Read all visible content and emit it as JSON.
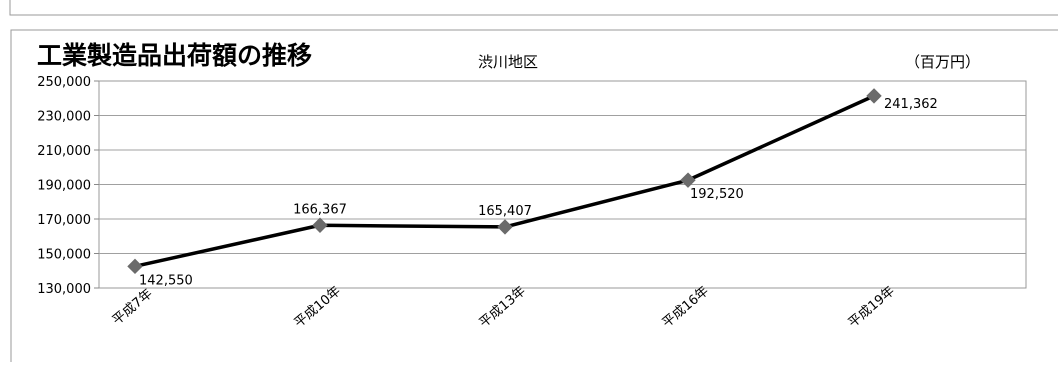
{
  "chart_data": {
    "type": "line",
    "title": "工業製造品出荷額の推移",
    "subtitle": "渋川地区",
    "unit_label": "（百万円）",
    "categories": [
      "平成7年",
      "平成10年",
      "平成13年",
      "平成16年",
      "平成19年"
    ],
    "values": [
      142550,
      166367,
      165407,
      192520,
      241362
    ],
    "data_labels": [
      "142,550",
      "166,367",
      "165,407",
      "192,520",
      "241,362"
    ],
    "ylim": [
      130000,
      250000
    ],
    "yticks": [
      130000,
      150000,
      170000,
      190000,
      210000,
      230000,
      250000
    ],
    "ytick_labels": [
      "130,000",
      "150,000",
      "170,000",
      "190,000",
      "210,000",
      "230,000",
      "250,000"
    ],
    "grid": true,
    "colors": {
      "line": "#000000",
      "marker": "#6b6b6b",
      "grid": "#a0a0a0"
    }
  }
}
